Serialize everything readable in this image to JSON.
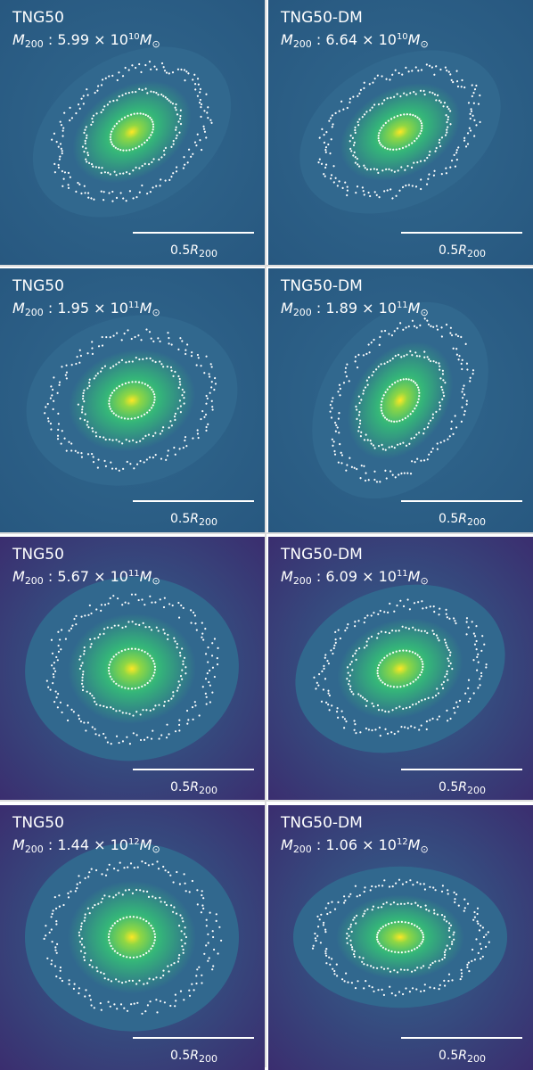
{
  "colormap": [
    "#440154",
    "#31688e",
    "#35b779",
    "#90d743",
    "#fde725"
  ],
  "panels": [
    {
      "sim": "TNG50",
      "mass_text": "5.99 × 10",
      "mass_exp": "10",
      "mass_value": 59900000000.0,
      "tilt_deg": -32,
      "axis_ratio": 0.7
    },
    {
      "sim": "TNG50-DM",
      "mass_text": "6.64 × 10",
      "mass_exp": "10",
      "mass_value": 66400000000.0,
      "tilt_deg": -28,
      "axis_ratio": 0.68
    },
    {
      "sim": "TNG50",
      "mass_text": "1.95 × 10",
      "mass_exp": "11",
      "mass_value": 195000000000.0,
      "tilt_deg": -15,
      "axis_ratio": 0.78
    },
    {
      "sim": "TNG50-DM",
      "mass_text": "1.89 × 10",
      "mass_exp": "11",
      "mass_value": 189000000000.0,
      "tilt_deg": -55,
      "axis_ratio": 0.72
    },
    {
      "sim": "TNG50",
      "mass_text": "5.67 × 10",
      "mass_exp": "11",
      "mass_value": 567000000000.0,
      "tilt_deg": -5,
      "axis_ratio": 0.86
    },
    {
      "sim": "TNG50-DM",
      "mass_text": "6.09 × 10",
      "mass_exp": "11",
      "mass_value": 609000000000.0,
      "tilt_deg": -18,
      "axis_ratio": 0.76
    },
    {
      "sim": "TNG50",
      "mass_text": "1.44 × 10",
      "mass_exp": "12",
      "mass_value": 1440000000000.0,
      "tilt_deg": 0,
      "axis_ratio": 0.88
    },
    {
      "sim": "TNG50-DM",
      "mass_text": "1.06 × 10",
      "mass_exp": "12",
      "mass_value": 1060000000000.0,
      "tilt_deg": 0,
      "axis_ratio": 0.66
    }
  ],
  "mass_symbol": "M",
  "mass_subscript": "200",
  "mass_unit_sub": "⊙",
  "scalebar_label": "0.5",
  "scalebar_symbol": "R",
  "scalebar_subscript": "200"
}
